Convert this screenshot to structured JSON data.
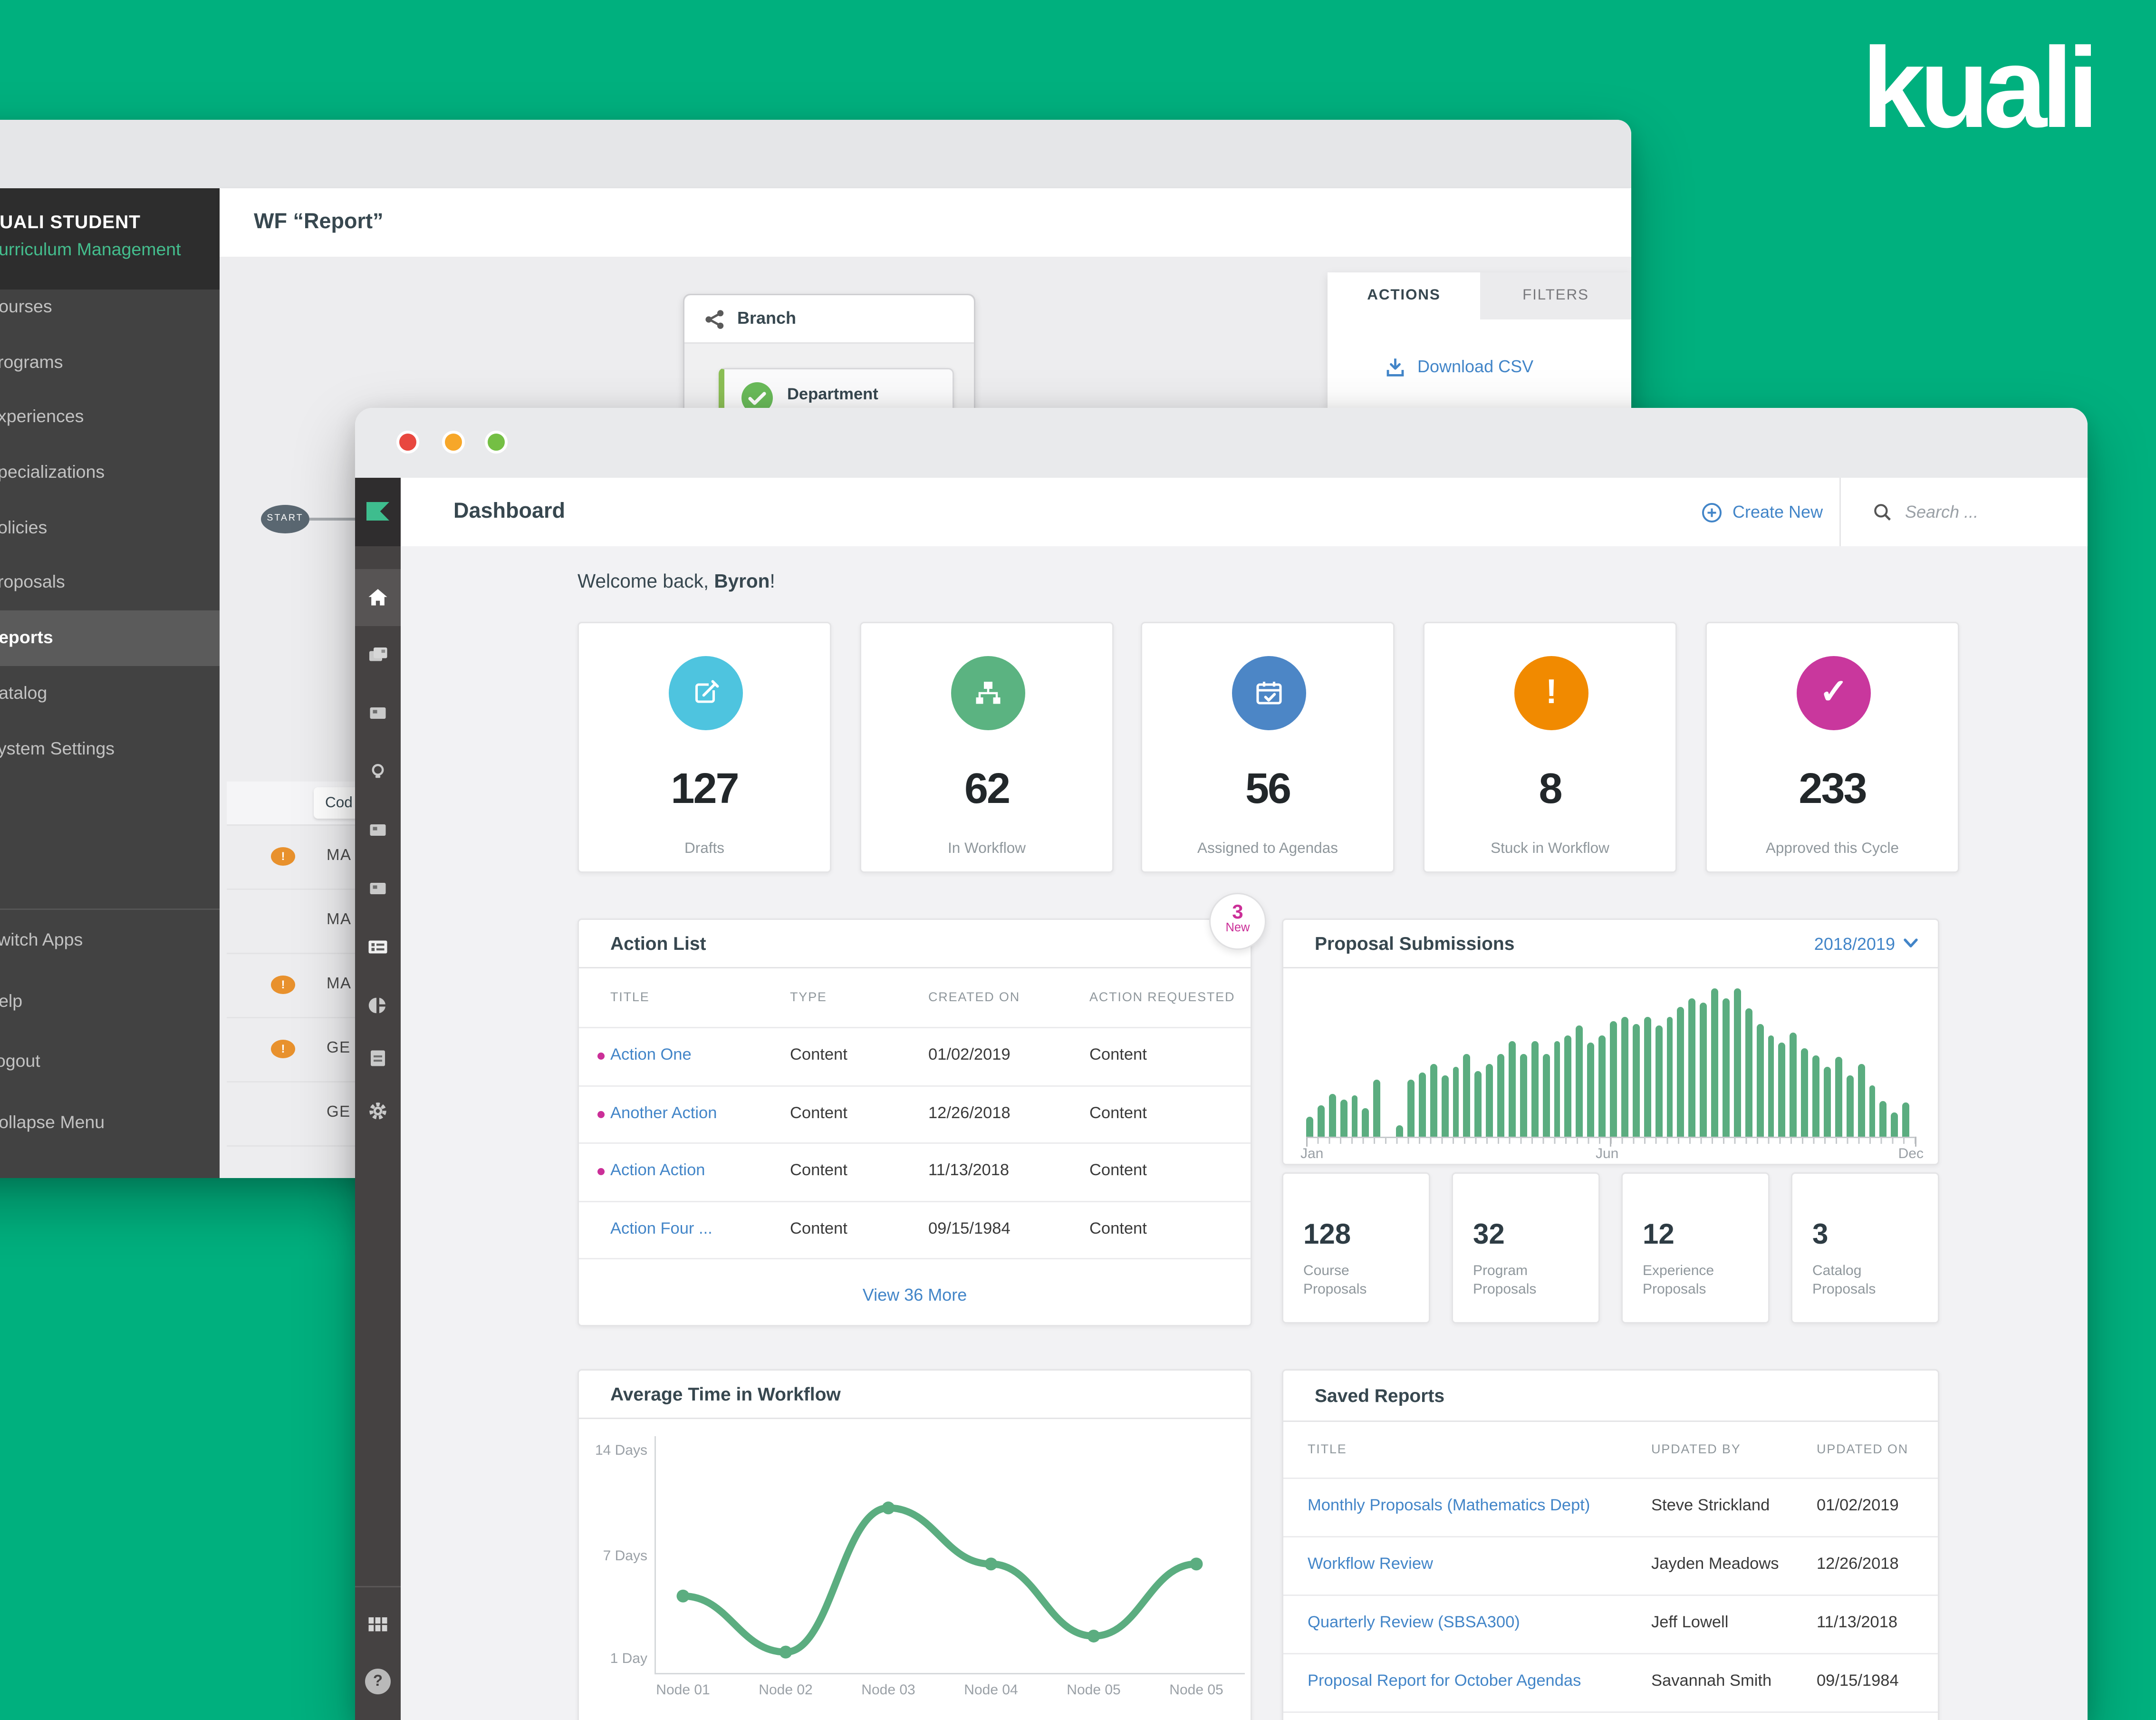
{
  "brand": {
    "logo_text": "kuali",
    "background_color": "#00B07E",
    "accent_green": "#5BAD80",
    "link_blue": "#4285C8",
    "pink": "#CB2F98"
  },
  "back_window": {
    "title": "WF “Report”",
    "sidebar": {
      "app_title": "KUALI STUDENT",
      "app_subtitle": "Curriculum Management",
      "items": [
        {
          "label": "Courses"
        },
        {
          "label": "Programs"
        },
        {
          "label": "Experiences"
        },
        {
          "label": "Specializations"
        },
        {
          "label": "Policies"
        },
        {
          "label": "Proposals"
        },
        {
          "label": "Reports",
          "active": true
        },
        {
          "label": "Catalog"
        },
        {
          "label": "System Settings"
        }
      ],
      "footer_items": [
        {
          "label": "Switch Apps"
        },
        {
          "label": "Help"
        },
        {
          "label": "Logout"
        },
        {
          "label": "Collapse Menu"
        }
      ]
    },
    "flowchart": {
      "start_label": "START",
      "branch_label": "Branch",
      "department_label": "Department"
    },
    "panel": {
      "tabs": [
        {
          "label": "ACTIONS",
          "active": true
        },
        {
          "label": "FILTERS",
          "active": false
        }
      ],
      "download_csv_label": "Download CSV"
    },
    "table": {
      "header_chip": "Cod",
      "rows": [
        {
          "code": "MA",
          "warning": "!"
        },
        {
          "code": "MA",
          "warning": ""
        },
        {
          "code": "MA",
          "warning": "!"
        },
        {
          "code": "GE",
          "warning": "!"
        },
        {
          "code": "GE",
          "warning": ""
        }
      ]
    }
  },
  "front_window": {
    "header": {
      "title": "Dashboard",
      "create_new_label": "Create New",
      "search_placeholder": "Search ..."
    },
    "welcome": {
      "prefix": "Welcome back, ",
      "name": "Byron",
      "suffix": "!"
    },
    "stats": [
      {
        "value": "127",
        "label": "Drafts",
        "color": "#4EC4DF",
        "icon": "edit-icon"
      },
      {
        "value": "62",
        "label": "In Workflow",
        "color": "#5BB381",
        "icon": "sitemap-icon"
      },
      {
        "value": "56",
        "label": "Assigned to Agendas",
        "color": "#4C86C6",
        "icon": "calendar-check-icon"
      },
      {
        "value": "8",
        "label": "Stuck in Workflow",
        "color": "#F18A00",
        "icon": "exclamation-icon",
        "glyph": "!"
      },
      {
        "value": "233",
        "label": "Approved this Cycle",
        "color": "#C9379D",
        "icon": "check-icon",
        "glyph": "✓"
      }
    ],
    "action_list": {
      "title": "Action List",
      "badge": {
        "count": "3",
        "label": "New"
      },
      "columns": [
        "TITLE",
        "TYPE",
        "CREATED ON",
        "ACTION REQUESTED"
      ],
      "rows": [
        {
          "title": "Action One",
          "type": "Content",
          "created_on": "01/02/2019",
          "action_requested": "Content",
          "new": true
        },
        {
          "title": "Another Action",
          "type": "Content",
          "created_on": "12/26/2018",
          "action_requested": "Content",
          "new": true
        },
        {
          "title": "Action Action",
          "type": "Content",
          "created_on": "11/13/2018",
          "action_requested": "Content",
          "new": true
        },
        {
          "title": "Action Four ...",
          "type": "Content",
          "created_on": "09/15/1984",
          "action_requested": "Content",
          "new": false
        }
      ],
      "footer_link": "View 36 More"
    },
    "proposal_submissions": {
      "title": "Proposal Submissions",
      "period": "2018/2019"
    },
    "proposal_counts": [
      {
        "value": "128",
        "label_line1": "Course",
        "label_line2": "Proposals"
      },
      {
        "value": "32",
        "label_line1": "Program",
        "label_line2": "Proposals"
      },
      {
        "value": "12",
        "label_line1": "Experience",
        "label_line2": "Proposals"
      },
      {
        "value": "3",
        "label_line1": "Catalog",
        "label_line2": "Proposals"
      }
    ],
    "avg_time": {
      "title": "Average Time in Workflow"
    },
    "saved_reports": {
      "title": "Saved Reports",
      "columns": [
        "TITLE",
        "UPDATED BY",
        "UPDATED ON"
      ],
      "rows": [
        {
          "title": "Monthly Proposals (Mathematics Dept)",
          "updated_by": "Steve Strickland",
          "updated_on": "01/02/2019"
        },
        {
          "title": "Workflow Review",
          "updated_by": "Jayden Meadows",
          "updated_on": "12/26/2018"
        },
        {
          "title": "Quarterly Review (SBSA300)",
          "updated_by": "Jeff Lowell",
          "updated_on": "11/13/2018"
        },
        {
          "title": "Proposal Report for October Agendas",
          "updated_by": "Savannah Smith",
          "updated_on": "09/15/1984"
        }
      ]
    },
    "help_glyph": "?"
  },
  "icons": {
    "rail": [
      "home-icon",
      "documents-icon",
      "card-icon",
      "lightbulb-icon",
      "card-icon",
      "card-icon",
      "agenda-list-icon",
      "pie-chart-icon",
      "report-doc-icon",
      "gear-icon",
      "apps-grid-icon",
      "help-icon"
    ],
    "traffic_lights": {
      "red": "#E8473F",
      "yellow": "#F7A729",
      "green": "#74BF44"
    }
  },
  "chart_data": [
    {
      "type": "bar",
      "title": "Proposal Submissions",
      "period": "2018/2019",
      "xlabel_ticks": [
        "Jan",
        "Jun",
        "Dec"
      ],
      "x_axis": "Months (weekly bars, Jan–Dec)",
      "ylim": [
        0,
        100
      ],
      "grid": false,
      "values": [
        13,
        20,
        28,
        24,
        27,
        19,
        37,
        0,
        7,
        37,
        42,
        47,
        40,
        45,
        54,
        43,
        47,
        54,
        62,
        54,
        62,
        54,
        62,
        66,
        72,
        61,
        66,
        75,
        78,
        73,
        78,
        72,
        78,
        84,
        90,
        87,
        96,
        90,
        96,
        83,
        73,
        66,
        61,
        68,
        57,
        53,
        45,
        52,
        40,
        47,
        33,
        23,
        16,
        22
      ]
    },
    {
      "type": "line",
      "title": "Average Time in Workflow",
      "categories": [
        "Node 01",
        "Node 02",
        "Node 03",
        "Node 04",
        "Node 05",
        "Node 05"
      ],
      "values_days": [
        5,
        1.5,
        10.5,
        7,
        2.5,
        7
      ],
      "ytick_labels": [
        "14 Days",
        "7 Days",
        "1 Day"
      ],
      "ylim": [
        1,
        14
      ],
      "grid": false,
      "legend": "none"
    }
  ]
}
